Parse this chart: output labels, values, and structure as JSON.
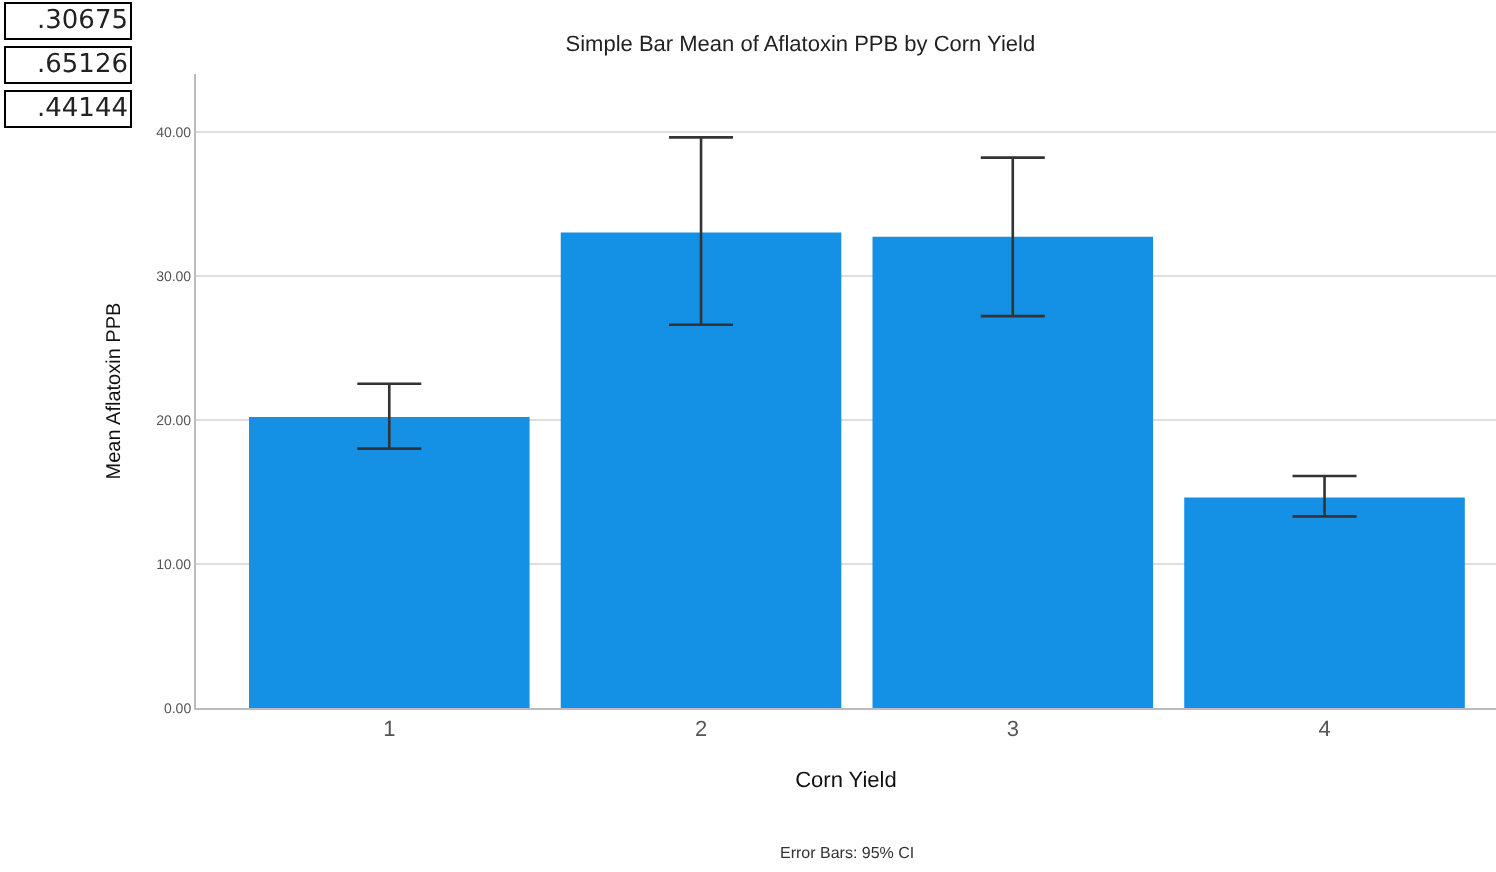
{
  "chart_data": {
    "type": "bar",
    "title": "Simple Bar Mean of Aflatoxin PPB by Corn Yield",
    "xlabel": "Corn Yield",
    "ylabel": "Mean Aflatoxin PPB",
    "categories": [
      "1",
      "2",
      "3",
      "4"
    ],
    "values": [
      20.2,
      33.0,
      32.7,
      14.6
    ],
    "errors": [
      [
        18.0,
        22.5
      ],
      [
        26.6,
        39.6
      ],
      [
        27.2,
        38.2
      ],
      [
        13.3,
        16.1
      ]
    ],
    "color": "#1490e4",
    "ylim": [
      0,
      44
    ],
    "yticks": [
      {
        "value": 0,
        "label": "0.00"
      },
      {
        "value": 10,
        "label": "10.00"
      },
      {
        "value": 20,
        "label": "20.00"
      },
      {
        "value": 30,
        "label": "30.00"
      },
      {
        "value": 40,
        "label": "40.00"
      }
    ],
    "grid": "y",
    "annotations": [
      "Error Bars: 95% CI",
      ".30675",
      ".65126",
      ".44144"
    ]
  }
}
